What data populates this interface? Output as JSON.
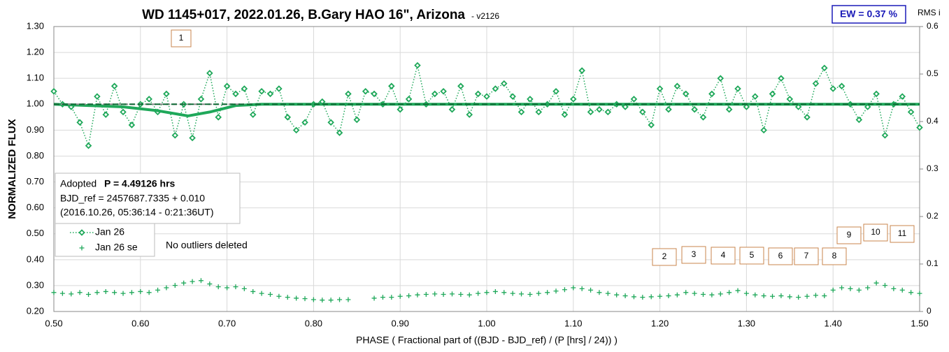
{
  "chart_data": {
    "type": "scatter",
    "title": "WD 1145+017, 2022.01.26, B.Gary HAO 16\", Arizona",
    "version": "- v2126",
    "ew_label": "EW = 0.37 %",
    "y2_label": "RMS i",
    "x_label": "PHASE ( Fractional part of ((BJD - BJD_ref) / (P [hrs] / 24)) )",
    "y_label": "NORMALIZED FLUX",
    "info": {
      "prefix": "Adopted",
      "period": "P = 4.49126 hrs",
      "bjd_ref": "BJD_ref = 2457687.7335 + 0.010",
      "dates": "(2016.10.26, 05:36:14 - 0:21:36UT)"
    },
    "note": "No outliers deleted",
    "annotations": [
      "1",
      "2",
      "3",
      "4",
      "5",
      "6",
      "7",
      "8",
      "9",
      "10",
      "11"
    ],
    "grid": true,
    "xlim": [
      0.5,
      1.5
    ],
    "ylim": [
      0.2,
      1.3
    ],
    "y2lim": [
      0,
      0.6
    ],
    "xticks": [
      {
        "value": 0.5,
        "label": "0.50"
      },
      {
        "value": 0.6,
        "label": "0.60"
      },
      {
        "value": 0.7,
        "label": "0.70"
      },
      {
        "value": 0.8,
        "label": "0.80"
      },
      {
        "value": 0.9,
        "label": "0.90"
      },
      {
        "value": 1.0,
        "label": "1.00"
      },
      {
        "value": 1.1,
        "label": "1.10"
      },
      {
        "value": 1.2,
        "label": "1.20"
      },
      {
        "value": 1.3,
        "label": "1.30"
      },
      {
        "value": 1.4,
        "label": "1.40"
      },
      {
        "value": 1.5,
        "label": "1.50"
      }
    ],
    "yticks": [
      {
        "value": 0.2,
        "label": "0.20"
      },
      {
        "value": 0.3,
        "label": "0.30"
      },
      {
        "value": 0.4,
        "label": "0.40"
      },
      {
        "value": 0.5,
        "label": "0.50"
      },
      {
        "value": 0.6,
        "label": "0.60"
      },
      {
        "value": 0.7,
        "label": "0.70"
      },
      {
        "value": 0.8,
        "label": "0.80"
      },
      {
        "value": 0.9,
        "label": "0.90"
      },
      {
        "value": 1.0,
        "label": "1.00"
      },
      {
        "value": 1.1,
        "label": "1.10"
      },
      {
        "value": 1.2,
        "label": "1.20"
      },
      {
        "value": 1.3,
        "label": "1.30"
      }
    ],
    "y2ticks": [
      0,
      0.1,
      0.2,
      0.3,
      0.4,
      0.5,
      0.6
    ],
    "x": [
      0.5,
      0.51,
      0.52,
      0.53,
      0.54,
      0.55,
      0.56,
      0.57,
      0.58,
      0.59,
      0.6,
      0.61,
      0.62,
      0.63,
      0.64,
      0.65,
      0.66,
      0.67,
      0.68,
      0.69,
      0.7,
      0.71,
      0.72,
      0.73,
      0.74,
      0.75,
      0.76,
      0.77,
      0.78,
      0.79,
      0.8,
      0.81,
      0.82,
      0.83,
      0.84,
      0.85,
      0.86,
      0.87,
      0.88,
      0.89,
      0.9,
      0.91,
      0.92,
      0.93,
      0.94,
      0.95,
      0.96,
      0.97,
      0.98,
      0.99,
      1.0,
      1.01,
      1.02,
      1.03,
      1.04,
      1.05,
      1.06,
      1.07,
      1.08,
      1.09,
      1.1,
      1.11,
      1.12,
      1.13,
      1.14,
      1.15,
      1.16,
      1.17,
      1.18,
      1.19,
      1.2,
      1.21,
      1.22,
      1.23,
      1.24,
      1.25,
      1.26,
      1.27,
      1.28,
      1.29,
      1.3,
      1.31,
      1.32,
      1.33,
      1.34,
      1.35,
      1.36,
      1.37,
      1.38,
      1.39,
      1.4,
      1.41,
      1.42,
      1.43,
      1.44,
      1.45,
      1.46,
      1.47,
      1.48,
      1.49,
      1.5
    ],
    "series": [
      {
        "name": "Jan 26",
        "color": "#1fa85a",
        "marker": "diamond",
        "values": [
          1.05,
          1.0,
          0.99,
          0.93,
          0.84,
          1.03,
          0.96,
          1.07,
          0.97,
          0.92,
          1.0,
          1.02,
          0.97,
          1.04,
          0.88,
          1.0,
          0.87,
          1.02,
          1.12,
          0.95,
          1.07,
          1.04,
          1.06,
          0.96,
          1.05,
          1.04,
          1.06,
          0.95,
          0.9,
          0.93,
          1.0,
          1.01,
          0.93,
          0.89,
          1.04,
          0.94,
          1.05,
          1.04,
          1.0,
          1.07,
          0.98,
          1.02,
          1.15,
          1.0,
          1.04,
          1.05,
          0.98,
          1.07,
          0.96,
          1.04,
          1.03,
          1.06,
          1.08,
          1.03,
          0.97,
          1.02,
          0.97,
          1.0,
          1.05,
          0.96,
          1.02,
          1.13,
          0.97,
          0.98,
          0.97,
          1.0,
          0.99,
          1.02,
          0.97,
          0.92,
          1.06,
          0.98,
          1.07,
          1.04,
          0.98,
          0.95,
          1.04,
          1.1,
          0.98,
          1.06,
          0.99,
          1.03,
          0.9,
          1.04,
          1.1,
          1.02,
          0.99,
          0.95,
          1.08,
          1.14,
          1.06,
          1.07,
          1.0,
          0.94,
          0.99,
          1.04,
          0.88,
          1.0,
          1.03,
          0.97,
          0.91
        ]
      },
      {
        "name": "Jan 26 se",
        "color": "#1fa85a",
        "marker": "plus",
        "axis": "y2",
        "values": [
          0.04,
          0.038,
          0.037,
          0.04,
          0.036,
          0.04,
          0.042,
          0.04,
          0.038,
          0.04,
          0.042,
          0.04,
          0.045,
          0.05,
          0.055,
          0.06,
          0.063,
          0.065,
          0.058,
          0.052,
          0.05,
          0.052,
          0.048,
          0.042,
          0.038,
          0.036,
          0.032,
          0.03,
          0.028,
          0.027,
          0.025,
          0.024,
          0.024,
          0.025,
          0.025,
          null,
          null,
          0.028,
          0.03,
          0.03,
          0.032,
          0.033,
          0.035,
          0.036,
          0.037,
          0.036,
          0.037,
          0.036,
          0.035,
          0.038,
          0.04,
          0.042,
          0.04,
          0.038,
          0.037,
          0.036,
          0.038,
          0.04,
          0.043,
          0.046,
          0.05,
          0.048,
          0.045,
          0.04,
          0.038,
          0.035,
          0.033,
          0.031,
          0.03,
          0.031,
          0.032,
          0.033,
          0.035,
          0.04,
          0.038,
          0.036,
          0.035,
          0.037,
          0.04,
          0.044,
          0.038,
          0.035,
          0.033,
          0.032,
          0.033,
          0.031,
          0.03,
          0.032,
          0.034,
          0.033,
          0.045,
          0.05,
          0.048,
          0.045,
          0.05,
          0.06,
          0.055,
          0.048,
          0.045,
          0.04,
          0.038
        ]
      }
    ],
    "lines": [
      {
        "color": "#1fa85a",
        "width": 4,
        "x": [
          0.5,
          0.54,
          0.58,
          0.62,
          0.655,
          0.68,
          0.71,
          0.74,
          1.5
        ],
        "values": [
          1.0,
          0.995,
          0.99,
          0.975,
          0.955,
          0.97,
          0.995,
          1.0,
          1.0
        ]
      },
      {
        "color": "#888888",
        "width": 2,
        "dash": "6 4",
        "x": [
          0.5,
          0.72
        ],
        "values": [
          1.0,
          1.0
        ]
      },
      {
        "color": "#0f6b35",
        "width": 2,
        "dash": "8 4",
        "x": [
          0.5,
          1.5
        ],
        "values": [
          1.0,
          1.0
        ]
      }
    ]
  }
}
